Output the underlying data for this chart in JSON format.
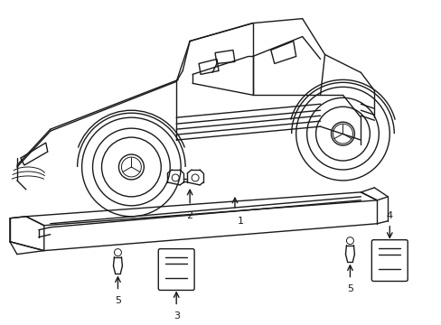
{
  "bg_color": "#ffffff",
  "line_color": "#1a1a1a",
  "lw": 1.0,
  "lw_thin": 0.7,
  "fig_width": 4.89,
  "fig_height": 3.6,
  "dpi": 100,
  "label_fontsize": 8
}
